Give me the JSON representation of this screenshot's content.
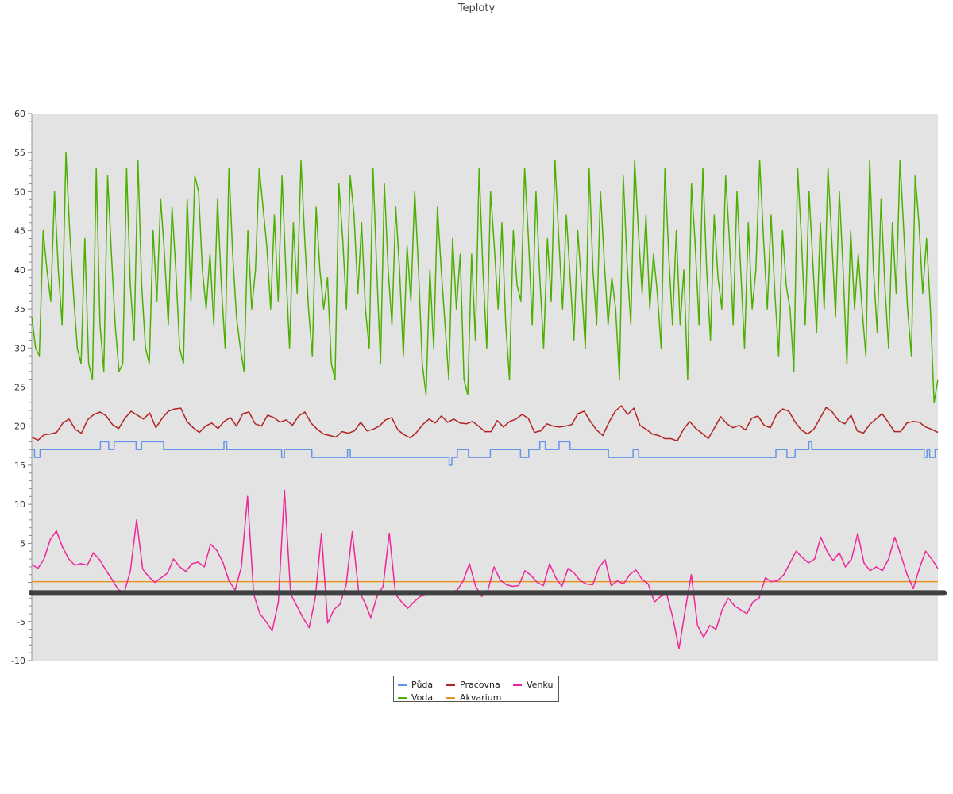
{
  "chart_data": {
    "type": "line",
    "title": "Teploty",
    "ylim": [
      -10,
      60
    ],
    "yticks": [
      "60",
      "55",
      "50",
      "45",
      "40",
      "35",
      "30",
      "25",
      "20",
      "15",
      "10",
      "5",
      "-5",
      "-10"
    ],
    "ytick_values": [
      60,
      55,
      50,
      45,
      40,
      35,
      30,
      25,
      20,
      15,
      10,
      5,
      -5,
      -10
    ],
    "grid": false,
    "legend_position": "bottom-center",
    "background_color": "#e3e3e3",
    "zero_band_value": -1.3,
    "zero_band_color": "#404040",
    "series": [
      {
        "name": "Půda",
        "color": "#6495ed",
        "values": [
          17,
          16,
          16,
          17,
          17,
          17,
          17,
          17,
          17,
          17,
          17,
          17,
          17,
          17,
          17,
          17,
          17,
          17,
          17,
          17,
          17,
          17,
          17,
          17,
          17,
          18,
          18,
          18,
          17,
          17,
          18,
          18,
          18,
          18,
          18,
          18,
          18,
          18,
          17,
          17,
          18,
          18,
          18,
          18,
          18,
          18,
          18,
          18,
          17,
          17,
          17,
          17,
          17,
          17,
          17,
          17,
          17,
          17,
          17,
          17,
          17,
          17,
          17,
          17,
          17,
          17,
          17,
          17,
          17,
          17,
          18,
          17,
          17,
          17,
          17,
          17,
          17,
          17,
          17,
          17,
          17,
          17,
          17,
          17,
          17,
          17,
          17,
          17,
          17,
          17,
          17,
          16,
          17,
          17,
          17,
          17,
          17,
          17,
          17,
          17,
          17,
          17,
          16,
          16,
          16,
          16,
          16,
          16,
          16,
          16,
          16,
          16,
          16,
          16,
          16,
          17,
          16,
          16,
          16,
          16,
          16,
          16,
          16,
          16,
          16,
          16,
          16,
          16,
          16,
          16,
          16,
          16,
          16,
          16,
          16,
          16,
          16,
          16,
          16,
          16,
          16,
          16,
          16,
          16,
          16,
          16,
          16,
          16,
          16,
          16,
          16,
          16,
          15,
          16,
          16,
          17,
          17,
          17,
          17,
          16,
          16,
          16,
          16,
          16,
          16,
          16,
          16,
          17,
          17,
          17,
          17,
          17,
          17,
          17,
          17,
          17,
          17,
          17,
          16,
          16,
          16,
          17,
          17,
          17,
          17,
          18,
          18,
          17,
          17,
          17,
          17,
          17,
          18,
          18,
          18,
          18,
          17,
          17,
          17,
          17,
          17,
          17,
          17,
          17,
          17,
          17,
          17,
          17,
          17,
          17,
          16,
          16,
          16,
          16,
          16,
          16,
          16,
          16,
          16,
          17,
          17,
          16,
          16,
          16,
          16,
          16,
          16,
          16,
          16,
          16,
          16,
          16,
          16,
          16,
          16,
          16,
          16,
          16,
          16,
          16,
          16,
          16,
          16,
          16,
          16,
          16,
          16,
          16,
          16,
          16,
          16,
          16,
          16,
          16,
          16,
          16,
          16,
          16,
          16,
          16,
          16,
          16,
          16,
          16,
          16,
          16,
          16,
          16,
          16,
          16,
          16,
          17,
          17,
          17,
          17,
          16,
          16,
          16,
          17,
          17,
          17,
          17,
          17,
          18,
          17,
          17,
          17,
          17,
          17,
          17,
          17,
          17,
          17,
          17,
          17,
          17,
          17,
          17,
          17,
          17,
          17,
          17,
          17,
          17,
          17,
          17,
          17,
          17,
          17,
          17,
          17,
          17,
          17,
          17,
          17,
          17,
          17,
          17,
          17,
          17,
          17,
          17,
          17,
          17,
          17,
          16,
          17,
          16,
          16,
          17,
          17
        ]
      },
      {
        "name": "Pracovna",
        "color": "#b22222",
        "values": [
          18.6,
          18.2,
          18.9,
          19.0,
          19.2,
          20.4,
          20.9,
          19.6,
          19.1,
          20.8,
          21.5,
          21.8,
          21.3,
          20.2,
          19.7,
          21.0,
          21.9,
          21.4,
          20.9,
          21.7,
          19.8,
          21.0,
          21.9,
          22.2,
          22.3,
          20.6,
          19.8,
          19.2,
          20.0,
          20.4,
          19.7,
          20.6,
          21.1,
          20.0,
          21.6,
          21.8,
          20.3,
          20.0,
          21.4,
          21.1,
          20.5,
          20.8,
          20.1,
          21.3,
          21.8,
          20.4,
          19.6,
          19.0,
          18.8,
          18.6,
          19.3,
          19.1,
          19.4,
          20.5,
          19.4,
          19.6,
          20.0,
          20.8,
          21.1,
          19.5,
          18.9,
          18.5,
          19.2,
          20.2,
          20.9,
          20.4,
          21.3,
          20.5,
          20.9,
          20.4,
          20.3,
          20.6,
          20.0,
          19.3,
          19.3,
          20.7,
          19.9,
          20.6,
          20.9,
          21.5,
          21.0,
          19.2,
          19.4,
          20.3,
          20.0,
          19.9,
          20.0,
          20.2,
          21.6,
          21.9,
          20.6,
          19.5,
          18.8,
          20.5,
          21.9,
          22.6,
          21.5,
          22.3,
          20.1,
          19.6,
          19.0,
          18.8,
          18.4,
          18.4,
          18.1,
          19.6,
          20.6,
          19.7,
          19.1,
          18.4,
          19.8,
          21.2,
          20.3,
          19.8,
          20.1,
          19.5,
          21.0,
          21.3,
          20.1,
          19.8,
          21.5,
          22.2,
          21.9,
          20.5,
          19.5,
          19.0,
          19.6,
          21.0,
          22.4,
          21.8,
          20.7,
          20.3,
          21.4,
          19.4,
          19.1,
          20.2,
          20.9,
          21.6,
          20.5,
          19.3,
          19.3,
          20.4,
          20.6,
          20.5,
          19.9,
          19.6,
          19.2
        ]
      },
      {
        "name": "Voda",
        "color": "#4cb000",
        "values": [
          34,
          30,
          29,
          45,
          40,
          36,
          50,
          40,
          33,
          55,
          45,
          37,
          30,
          28,
          44,
          28,
          26,
          53,
          33,
          27,
          52,
          42,
          33,
          27,
          28,
          53,
          38,
          31,
          54,
          38,
          30,
          28,
          45,
          36,
          49,
          42,
          33,
          48,
          40,
          30,
          28,
          49,
          36,
          52,
          50,
          40,
          35,
          42,
          33,
          49,
          38,
          30,
          53,
          42,
          34,
          30,
          27,
          45,
          35,
          40,
          53,
          48,
          43,
          35,
          47,
          36,
          52,
          40,
          30,
          46,
          37,
          54,
          44,
          35,
          29,
          48,
          40,
          35,
          39,
          28,
          26,
          51,
          44,
          35,
          52,
          47,
          37,
          46,
          35,
          30,
          53,
          40,
          28,
          51,
          40,
          33,
          48,
          40,
          29,
          43,
          36,
          50,
          40,
          28,
          24,
          40,
          30,
          48,
          40,
          33,
          26,
          44,
          35,
          42,
          26,
          24,
          42,
          31,
          53,
          40,
          30,
          50,
          43,
          35,
          46,
          33,
          26,
          45,
          38,
          36,
          53,
          44,
          33,
          50,
          39,
          30,
          44,
          36,
          54,
          44,
          35,
          47,
          39,
          31,
          45,
          38,
          30,
          53,
          40,
          33,
          50,
          41,
          33,
          39,
          35,
          26,
          52,
          41,
          33,
          54,
          45,
          37,
          47,
          35,
          42,
          37,
          30,
          53,
          42,
          33,
          45,
          33,
          40,
          26,
          51,
          43,
          33,
          53,
          40,
          31,
          47,
          39,
          35,
          52,
          44,
          33,
          50,
          40,
          30,
          46,
          35,
          40,
          54,
          44,
          35,
          47,
          37,
          29,
          45,
          38,
          35,
          27,
          53,
          44,
          33,
          50,
          41,
          32,
          46,
          35,
          53,
          44,
          34,
          50,
          40,
          28,
          45,
          35,
          42,
          35,
          29,
          54,
          40,
          32,
          49,
          38,
          30,
          46,
          37,
          54,
          45,
          35,
          29,
          52,
          46,
          37,
          44,
          35,
          23,
          26
        ]
      },
      {
        "name": "Akvarium",
        "color": "#e69522",
        "values": [
          0.1,
          0.1,
          0.1,
          0.1,
          0.1,
          0.1,
          0.1,
          0.1,
          0.1,
          0.1,
          0.1,
          0.1,
          0.1,
          0.1,
          0.1,
          0.1,
          0.1,
          0.1,
          0.1,
          0.1
        ]
      },
      {
        "name": "Venku",
        "color": "#f0259b",
        "values": [
          2.3,
          1.8,
          3.0,
          5.5,
          6.6,
          4.5,
          3.0,
          2.2,
          2.4,
          2.2,
          3.8,
          2.9,
          1.6,
          0.4,
          -0.9,
          -1.3,
          1.5,
          8.0,
          1.7,
          0.7,
          0.0,
          0.6,
          1.2,
          3.0,
          2.0,
          1.4,
          2.4,
          2.6,
          2.0,
          4.9,
          4.1,
          2.6,
          0.2,
          -1.0,
          2.0,
          11.0,
          -1.5,
          -4.0,
          -5.0,
          -6.2,
          -2.5,
          11.8,
          -1.5,
          -3.0,
          -4.5,
          -5.8,
          -2.0,
          6.3,
          -5.2,
          -3.5,
          -2.8,
          -0.3,
          6.5,
          -1.0,
          -2.5,
          -4.5,
          -1.8,
          -0.5,
          6.3,
          -1.5,
          -2.5,
          -3.3,
          -2.5,
          -1.8,
          -1.6,
          -1.5,
          -1.4,
          -1.3,
          -1.2,
          -1.0,
          0.2,
          2.4,
          -0.5,
          -1.8,
          -1.0,
          2.0,
          0.3,
          -0.3,
          -0.5,
          -0.4,
          1.5,
          0.9,
          0.0,
          -0.4,
          2.4,
          0.6,
          -0.5,
          1.8,
          1.2,
          0.2,
          -0.2,
          -0.3,
          1.9,
          2.9,
          -0.4,
          0.2,
          -0.2,
          1.0,
          1.6,
          0.4,
          -0.2,
          -2.5,
          -1.8,
          -1.5,
          -4.5,
          -8.5,
          -3.5,
          1.0,
          -5.5,
          -7.0,
          -5.5,
          -6.0,
          -3.5,
          -2.0,
          -3.0,
          -3.5,
          -4.0,
          -2.5,
          -2.0,
          0.6,
          0.1,
          0.2,
          1.0,
          2.5,
          4.0,
          3.2,
          2.5,
          3.0,
          5.8,
          4.0,
          2.8,
          3.8,
          2.0,
          3.0,
          6.3,
          2.5,
          1.5,
          2.0,
          1.5,
          3.0,
          5.8,
          3.5,
          1.0,
          -0.8,
          1.8,
          4.0,
          3.0,
          1.8
        ]
      }
    ]
  }
}
